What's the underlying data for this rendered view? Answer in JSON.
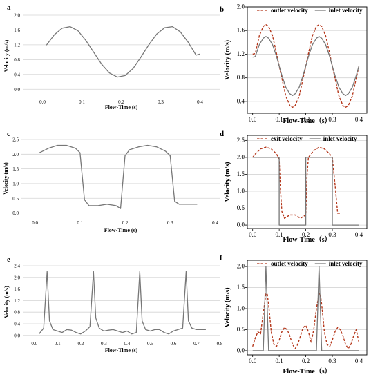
{
  "colors": {
    "inlet": "#777777",
    "outlet": "#b5371b",
    "grid": "#d4d4d4",
    "axis": "#000000"
  },
  "chart_data": [
    {
      "id": "a",
      "type": "line",
      "panel_label": "a",
      "xlabel": "Flow-Time (s)",
      "ylabel": "Velocity (m/s)",
      "xlim": [
        -0.05,
        0.45
      ],
      "ylim": [
        -0.2,
        2.0
      ],
      "xticks": [
        0.0,
        0.1,
        0.2,
        0.3,
        0.4
      ],
      "yticks": [
        0.0,
        0.4,
        0.8,
        1.2,
        1.6,
        2.0
      ],
      "xtick_labels": [
        "0.0",
        "0.1",
        "0.2",
        "0.3",
        "0.4"
      ],
      "ytick_labels": [
        "0.0",
        "0.4",
        "0.8",
        "1.2",
        "1.6",
        "2.0"
      ],
      "grid": true,
      "legend": null,
      "series": [
        {
          "style": "inlet",
          "x": [
            0.01,
            0.03,
            0.05,
            0.07,
            0.09,
            0.11,
            0.13,
            0.15,
            0.17,
            0.19,
            0.21,
            0.23,
            0.25,
            0.27,
            0.29,
            0.31,
            0.33,
            0.35,
            0.37,
            0.39,
            0.4
          ],
          "y": [
            1.19,
            1.47,
            1.65,
            1.69,
            1.58,
            1.32,
            1.0,
            0.68,
            0.44,
            0.33,
            0.37,
            0.56,
            0.87,
            1.2,
            1.49,
            1.66,
            1.69,
            1.55,
            1.27,
            0.92,
            0.95
          ]
        }
      ]
    },
    {
      "id": "b",
      "type": "line",
      "panel_label": "b",
      "xlabel": "Flow-Time（s）",
      "ylabel": "Velocity (m/s)",
      "xlim": [
        -0.02,
        0.43
      ],
      "ylim": [
        0.2,
        2.0
      ],
      "xticks": [
        0.0,
        0.1,
        0.2,
        0.3,
        0.4
      ],
      "yticks": [
        0.4,
        0.8,
        1.2,
        1.6,
        2.0
      ],
      "xtick_labels": [
        "0.0",
        "0.1",
        "0.2",
        "0.3",
        "0.4"
      ],
      "ytick_labels": [
        "0.4",
        "0.8",
        "1.2",
        "1.6",
        "2.0"
      ],
      "grid": true,
      "legend": "top",
      "series": [
        {
          "name": "outlet velocity",
          "style": "outlet",
          "x": [
            0.0,
            0.01,
            0.025,
            0.04,
            0.05,
            0.06,
            0.075,
            0.09,
            0.1,
            0.11,
            0.125,
            0.14,
            0.15,
            0.16,
            0.175,
            0.19,
            0.2,
            0.21,
            0.225,
            0.24,
            0.25,
            0.26,
            0.275,
            0.29,
            0.3,
            0.31,
            0.325,
            0.34,
            0.35,
            0.36,
            0.375,
            0.39,
            0.4
          ],
          "y": [
            1.2,
            1.21,
            1.51,
            1.67,
            1.7,
            1.67,
            1.51,
            1.21,
            1.0,
            0.79,
            0.49,
            0.33,
            0.3,
            0.33,
            0.49,
            0.79,
            1.0,
            1.21,
            1.51,
            1.67,
            1.7,
            1.67,
            1.51,
            1.21,
            1.0,
            0.79,
            0.49,
            0.33,
            0.3,
            0.33,
            0.49,
            0.79,
            1.0
          ]
        },
        {
          "name": "inlet velocity",
          "style": "inlet",
          "x": [
            0.0,
            0.01,
            0.025,
            0.04,
            0.05,
            0.06,
            0.075,
            0.09,
            0.1,
            0.11,
            0.125,
            0.14,
            0.15,
            0.16,
            0.175,
            0.19,
            0.2,
            0.21,
            0.225,
            0.24,
            0.25,
            0.26,
            0.275,
            0.29,
            0.3,
            0.31,
            0.325,
            0.34,
            0.35,
            0.36,
            0.375,
            0.39,
            0.4
          ],
          "y": [
            1.15,
            1.16,
            1.36,
            1.47,
            1.5,
            1.47,
            1.36,
            1.16,
            1.0,
            0.84,
            0.64,
            0.53,
            0.5,
            0.53,
            0.64,
            0.84,
            1.0,
            1.16,
            1.36,
            1.47,
            1.5,
            1.47,
            1.36,
            1.16,
            1.0,
            0.84,
            0.64,
            0.53,
            0.5,
            0.53,
            0.64,
            0.84,
            1.0
          ]
        }
      ]
    },
    {
      "id": "c",
      "type": "line",
      "panel_label": "c",
      "xlabel": "Flow-Time (s)",
      "ylabel": "Velocity (m/s)",
      "xlim": [
        -0.03,
        0.41
      ],
      "ylim": [
        -0.15,
        2.5
      ],
      "xticks": [
        0.0,
        0.1,
        0.2,
        0.3,
        0.4
      ],
      "yticks": [
        0.0,
        0.5,
        1.0,
        1.5,
        2.0,
        2.5
      ],
      "xtick_labels": [
        "0.0",
        "0.1",
        "0.2",
        "0.3",
        "0.4"
      ],
      "ytick_labels": [
        "0.0",
        "0.5",
        "1.0",
        "1.5",
        "2.0",
        "2.5"
      ],
      "grid": true,
      "legend": null,
      "series": [
        {
          "style": "inlet",
          "x": [
            0.01,
            0.03,
            0.05,
            0.07,
            0.09,
            0.1,
            0.11,
            0.12,
            0.14,
            0.16,
            0.18,
            0.19,
            0.2,
            0.21,
            0.23,
            0.25,
            0.27,
            0.29,
            0.3,
            0.31,
            0.32,
            0.34,
            0.36
          ],
          "y": [
            2.05,
            2.2,
            2.3,
            2.3,
            2.2,
            2.05,
            0.45,
            0.25,
            0.25,
            0.3,
            0.25,
            0.15,
            1.95,
            2.15,
            2.25,
            2.3,
            2.25,
            2.1,
            1.95,
            0.4,
            0.3,
            0.3,
            0.3
          ]
        }
      ]
    },
    {
      "id": "d",
      "type": "line",
      "panel_label": "d",
      "xlabel": "Flow-Time（s）",
      "ylabel": "Velocity (m/s)",
      "xlim": [
        -0.02,
        0.43
      ],
      "ylim": [
        -0.1,
        2.65
      ],
      "xticks": [
        0.0,
        0.1,
        0.2,
        0.3,
        0.4
      ],
      "yticks": [
        0.0,
        0.5,
        1.0,
        1.5,
        2.0,
        2.5
      ],
      "xtick_labels": [
        "0.0",
        "0.1",
        "0.2",
        "0.3",
        "0.4"
      ],
      "ytick_labels": [
        "0.0",
        "0.5",
        "1.0",
        "1.5",
        "2.0",
        "2.5"
      ],
      "grid": true,
      "legend": "top",
      "series": [
        {
          "name": "exit velocity",
          "style": "outlet",
          "x": [
            0.0,
            0.01,
            0.03,
            0.05,
            0.07,
            0.09,
            0.1,
            0.105,
            0.11,
            0.12,
            0.14,
            0.16,
            0.18,
            0.19,
            0.2,
            0.205,
            0.21,
            0.23,
            0.25,
            0.27,
            0.29,
            0.3,
            0.31,
            0.32,
            0.33
          ],
          "y": [
            2.0,
            2.1,
            2.25,
            2.3,
            2.25,
            2.1,
            1.95,
            1.0,
            0.4,
            0.2,
            0.3,
            0.3,
            0.2,
            0.25,
            0.3,
            1.5,
            2.0,
            2.2,
            2.3,
            2.25,
            2.1,
            2.0,
            1.2,
            0.35,
            0.35
          ]
        },
        {
          "name": "inlet velocity",
          "style": "inlet",
          "x": [
            0.0,
            0.1,
            0.1,
            0.2,
            0.2,
            0.3,
            0.3,
            0.4
          ],
          "y": [
            2.0,
            2.0,
            0.0,
            0.0,
            2.0,
            2.0,
            0.0,
            0.0
          ]
        }
      ]
    },
    {
      "id": "e",
      "type": "line",
      "panel_label": "e",
      "xlabel": "Flow-Time (s)",
      "ylabel": "Velocity (m/s)",
      "xlim": [
        -0.05,
        0.8
      ],
      "ylim": [
        -0.1,
        2.4
      ],
      "xticks": [
        0.0,
        0.1,
        0.2,
        0.3,
        0.4,
        0.5,
        0.6,
        0.7,
        0.8
      ],
      "yticks": [
        0.0,
        0.4,
        0.8,
        1.2,
        1.6,
        2.0,
        2.4
      ],
      "xtick_labels": [
        "0.0",
        "0.1",
        "0.2",
        "0.3",
        "0.4",
        "0.5",
        "0.6",
        "0.7",
        "0.8"
      ],
      "ytick_labels": [
        "0.0",
        "0.4",
        "0.8",
        "1.2",
        "1.6",
        "2.0",
        "2.4"
      ],
      "grid": true,
      "legend": null,
      "series": [
        {
          "style": "inlet",
          "x": [
            0.02,
            0.04,
            0.055,
            0.065,
            0.08,
            0.1,
            0.12,
            0.14,
            0.16,
            0.18,
            0.2,
            0.22,
            0.24,
            0.255,
            0.265,
            0.28,
            0.3,
            0.32,
            0.34,
            0.36,
            0.38,
            0.4,
            0.42,
            0.44,
            0.455,
            0.465,
            0.48,
            0.5,
            0.52,
            0.54,
            0.56,
            0.58,
            0.6,
            0.62,
            0.64,
            0.655,
            0.665,
            0.68,
            0.7,
            0.72,
            0.74
          ],
          "y": [
            0.05,
            0.25,
            2.2,
            0.5,
            0.2,
            0.15,
            0.1,
            0.2,
            0.18,
            0.1,
            0.05,
            0.15,
            0.3,
            2.2,
            0.6,
            0.25,
            0.15,
            0.18,
            0.2,
            0.15,
            0.1,
            0.15,
            0.05,
            0.1,
            2.2,
            0.5,
            0.2,
            0.15,
            0.2,
            0.2,
            0.1,
            0.05,
            0.15,
            0.2,
            0.25,
            2.2,
            0.5,
            0.25,
            0.2,
            0.2,
            0.2
          ]
        }
      ]
    },
    {
      "id": "f",
      "type": "line",
      "panel_label": "f",
      "xlabel": "Flow-Time（s）",
      "ylabel": "Velocity (m/s)",
      "xlim": [
        -0.02,
        0.43
      ],
      "ylim": [
        -0.1,
        2.15
      ],
      "xticks": [
        0.0,
        0.1,
        0.2,
        0.3,
        0.4
      ],
      "yticks": [
        0.0,
        0.5,
        1.0,
        1.5,
        2.0
      ],
      "xtick_labels": [
        "0.0",
        "0.1",
        "0.2",
        "0.3",
        "0.4"
      ],
      "ytick_labels": [
        "0.0",
        "0.5",
        "1.0",
        "1.5",
        "2.0"
      ],
      "grid": true,
      "legend": "top",
      "series": [
        {
          "name": "outlet velocity",
          "style": "outlet",
          "x": [
            0.0,
            0.01,
            0.02,
            0.03,
            0.04,
            0.05,
            0.055,
            0.06,
            0.07,
            0.08,
            0.09,
            0.1,
            0.11,
            0.12,
            0.13,
            0.14,
            0.15,
            0.16,
            0.17,
            0.18,
            0.19,
            0.2,
            0.21,
            0.22,
            0.23,
            0.24,
            0.25,
            0.255,
            0.26,
            0.27,
            0.28,
            0.29,
            0.3,
            0.31,
            0.32,
            0.33,
            0.34,
            0.35,
            0.36,
            0.37,
            0.38,
            0.39,
            0.4
          ],
          "y": [
            0.1,
            0.3,
            0.45,
            0.4,
            0.9,
            1.35,
            1.35,
            1.1,
            0.45,
            0.15,
            0.1,
            0.25,
            0.45,
            0.55,
            0.5,
            0.35,
            0.15,
            0.05,
            0.15,
            0.35,
            0.55,
            0.6,
            0.45,
            0.2,
            0.5,
            1.0,
            1.35,
            1.35,
            1.1,
            0.45,
            0.15,
            0.1,
            0.25,
            0.45,
            0.55,
            0.5,
            0.35,
            0.15,
            0.05,
            0.15,
            0.35,
            0.5,
            0.2
          ]
        },
        {
          "name": "inlet velocity",
          "style": "inlet",
          "x": [
            0.0,
            0.04,
            0.05,
            0.06,
            0.1,
            0.24,
            0.25,
            0.26,
            0.3,
            0.4
          ],
          "y": [
            0.0,
            0.0,
            2.0,
            0.0,
            0.0,
            0.0,
            2.0,
            0.0,
            0.0,
            0.0
          ]
        }
      ]
    }
  ]
}
